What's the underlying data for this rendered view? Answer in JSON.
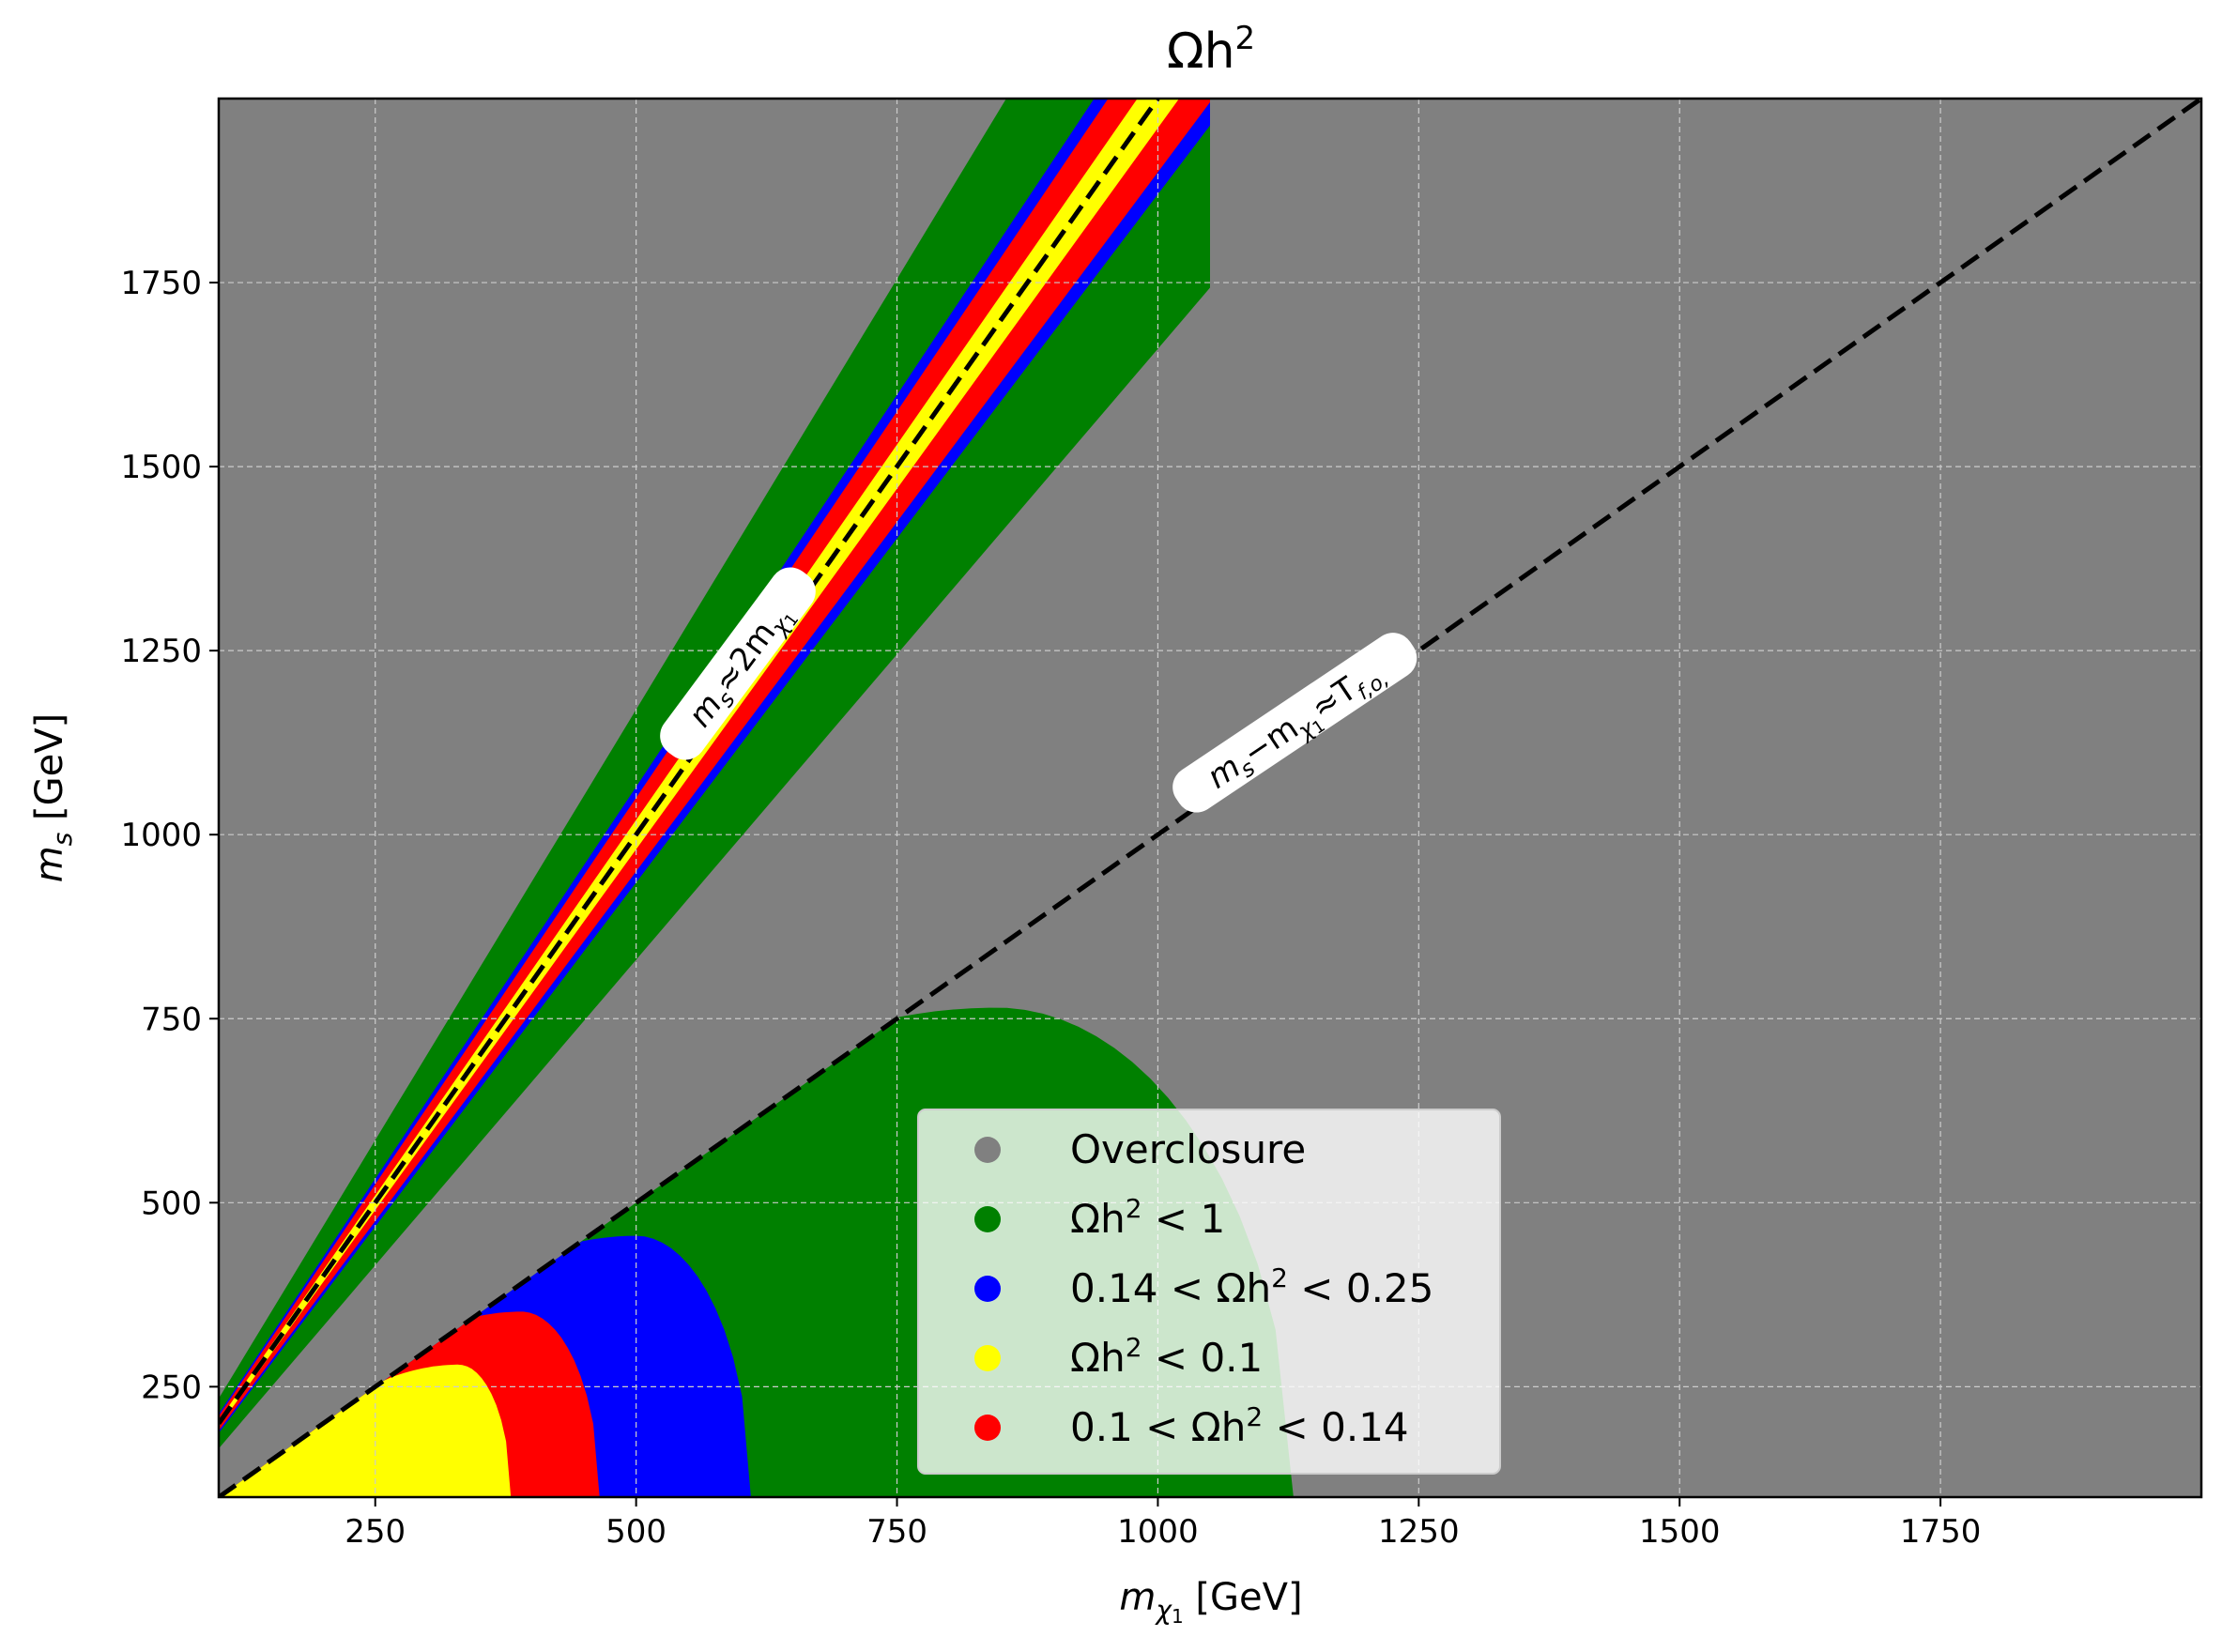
{
  "chart_data": {
    "type": "scatter",
    "title": "Ωh²",
    "title_parts": {
      "base": "Ωh",
      "sup": "2"
    },
    "xlabel": "m_χ1 [GeV]",
    "ylabel": "m_s [GeV]",
    "xlabel_parts": {
      "m": "m",
      "sub": "χ",
      "subsub": "1",
      "unit": " [GeV]"
    },
    "ylabel_parts": {
      "m": "m",
      "sub": "s",
      "unit": " [GeV]"
    },
    "xlim": [
      100,
      2000
    ],
    "ylim": [
      100,
      2000
    ],
    "xticks": [
      250,
      500,
      750,
      1000,
      1250,
      1500,
      1750
    ],
    "yticks": [
      250,
      500,
      750,
      1000,
      1250,
      1500,
      1750
    ],
    "grid": true,
    "background_color": "#808080",
    "legend_position": "lower-center",
    "legend": [
      {
        "label": "Overclosure",
        "color": "#808080",
        "parts": [
          "Overclosure"
        ]
      },
      {
        "label": "Ωh² < 1",
        "color": "#008000",
        "parts": [
          "Ωh",
          "2",
          " < 1"
        ]
      },
      {
        "label": "0.14 < Ωh² < 0.25",
        "color": "#0000ff",
        "parts": [
          "0.14 < Ωh",
          "2",
          " < 0.25"
        ]
      },
      {
        "label": "Ωh² < 0.1",
        "color": "#ffff00",
        "parts": [
          "Ωh",
          "2",
          " < 0.1"
        ]
      },
      {
        "label": "0.1 < Ωh² < 0.14",
        "color": "#ff0000",
        "parts": [
          "0.1 < Ωh",
          "2",
          " < 0.14"
        ]
      }
    ],
    "reference_lines": [
      {
        "label": "m_s ≈ 2m_χ1",
        "text": "m",
        "sub": "s",
        "rest": "≈2m",
        "sub2": "χ",
        "sub3": "1",
        "x": [
          100,
          1000
        ],
        "y": [
          200,
          2000
        ]
      },
      {
        "label": "m_s − m_χ1 ≈ T_f.o.",
        "text": "m",
        "sub": "s",
        "rest": "−m",
        "sub2": "χ",
        "sub3": "1",
        "rest2": "≈T",
        "sub4": "f,o,",
        "x": [
          100,
          2000
        ],
        "y": [
          100,
          2000
        ]
      }
    ],
    "regions": {
      "resonance_band": {
        "green_halfwidth_rel": 0.17,
        "blue_halfwidth_rel": 0.065,
        "red_halfwidth_rel": 0.05,
        "yellow_halfwidth_rel": 0.02
      },
      "coannihilation": [
        {
          "name": "green",
          "color": "#008000",
          "x_max": 1130,
          "y_peak": 765,
          "x_peak": 845
        },
        {
          "name": "blue",
          "color": "#0000ff",
          "x_max": 610,
          "y_peak": 455,
          "x_peak": 500
        },
        {
          "name": "red",
          "color": "#ff0000",
          "x_max": 465,
          "y_peak": 352,
          "x_peak": 390
        },
        {
          "name": "yellow",
          "color": "#ffff00",
          "x_max": 380,
          "y_peak": 280,
          "x_peak": 330
        }
      ]
    }
  }
}
